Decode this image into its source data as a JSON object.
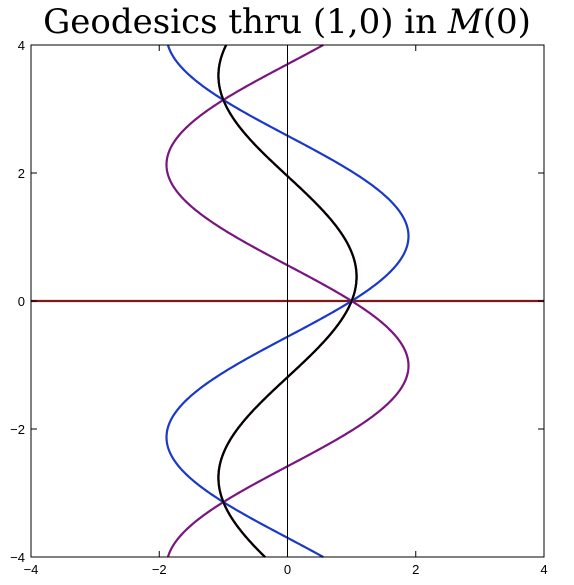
{
  "chart_data": {
    "type": "line",
    "title": {
      "before": "Geodesics thru (1,0) in ",
      "symbol": "M",
      "after": "(0)"
    },
    "xlabel": "",
    "ylabel": "",
    "xlim": [
      -4,
      4
    ],
    "ylim": [
      -4,
      4
    ],
    "x_ticks": [
      {
        "value": -4,
        "label": "−4"
      },
      {
        "value": -2,
        "label": "−2"
      },
      {
        "value": 0,
        "label": "0"
      },
      {
        "value": 2,
        "label": "2"
      },
      {
        "value": 4,
        "label": "4"
      }
    ],
    "y_ticks": [
      {
        "value": -4,
        "label": "−4"
      },
      {
        "value": -2,
        "label": "−2"
      },
      {
        "value": 0,
        "label": "0"
      },
      {
        "value": 2,
        "label": "2"
      },
      {
        "value": 4,
        "label": "4"
      }
    ],
    "grid": false,
    "legend": "none",
    "foci": [
      [
        1,
        0
      ],
      [
        -1,
        3.14159
      ],
      [
        -1,
        -3.14159
      ]
    ],
    "period": 6.28319,
    "series": [
      {
        "color": "#7b1a1a",
        "kind": "horizontal",
        "y": 0,
        "x_range": [
          -4,
          4
        ]
      },
      {
        "color": "#1a38c9",
        "kind": "periodic",
        "amplitude": 1.6,
        "x_center": 1.0,
        "x_offset": 0.0,
        "phase": 0.0,
        "y_range": [
          -4,
          4
        ]
      },
      {
        "color": "#7a1580",
        "kind": "periodic",
        "amplitude": -1.6,
        "x_center": 1.0,
        "x_offset": 0.0,
        "phase": 0.0,
        "y_range": [
          -4,
          4
        ]
      },
      {
        "color": "#f08020",
        "kind": "periodic",
        "amplitude": 0.4,
        "x_center": 1.0,
        "x_offset": 0.0,
        "phase": 0.0,
        "y_range": [
          -4,
          4
        ]
      },
      {
        "color": "#9b7040",
        "kind": "periodic",
        "amplitude": 0.4,
        "x_center": 1.0,
        "x_offset": 0.0,
        "phase": 0.0,
        "y_range": [
          -4,
          4
        ]
      },
      {
        "color": "#22e822",
        "kind": "periodic",
        "amplitude": 0.4,
        "x_center": 1.0,
        "x_offset": 0.0,
        "phase": 0.0,
        "y_range": [
          -4,
          4
        ]
      },
      {
        "color": "#f040f0",
        "kind": "periodic",
        "amplitude": 0.4,
        "x_center": 1.0,
        "x_offset": 0.0,
        "phase": 0.0,
        "y_range": [
          -4,
          4
        ]
      },
      {
        "color": "#000000",
        "kind": "periodic",
        "amplitude": 0.4,
        "x_center": 1.0,
        "x_offset": 0.0,
        "phase": 0.0,
        "y_range": [
          -4,
          4
        ]
      }
    ]
  }
}
